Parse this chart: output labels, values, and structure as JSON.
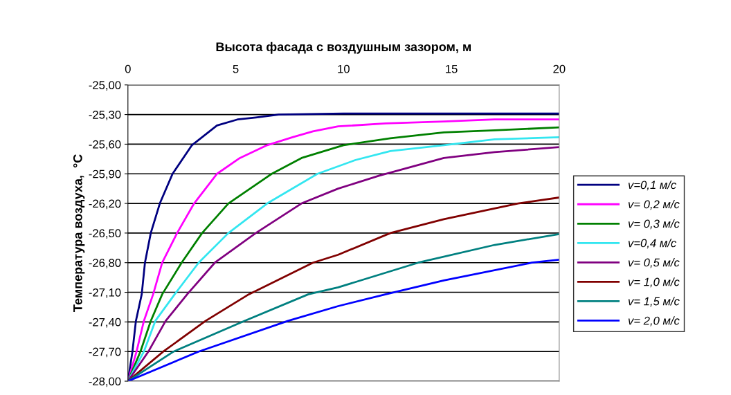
{
  "chart_data": {
    "type": "line",
    "xlabel": "Высота фасада с воздушным зазором, м",
    "ylabel": "Температура воздуха,  °С",
    "xlim": [
      0,
      20
    ],
    "xticks": [
      0,
      5,
      10,
      15,
      20
    ],
    "ylim": [
      -28,
      -25
    ],
    "yticks": [
      {
        "value": -25,
        "label": "-25,00"
      },
      {
        "value": -25.3,
        "label": "-25,30"
      },
      {
        "value": -25.6,
        "label": "-25,60"
      },
      {
        "value": -25.9,
        "label": "-25,90"
      },
      {
        "value": -26.2,
        "label": "-26,20"
      },
      {
        "value": -26.5,
        "label": "-26,50"
      },
      {
        "value": -26.8,
        "label": "-26,80"
      },
      {
        "value": -27.1,
        "label": "-27,10"
      },
      {
        "value": -27.4,
        "label": "-27,40"
      },
      {
        "value": -27.7,
        "label": "-27,70"
      },
      {
        "value": -28,
        "label": "-28,00"
      }
    ],
    "grid": "y",
    "legend": "right",
    "marker": "none",
    "line_style": "solid",
    "series": [
      {
        "name": "v=0,1 м/с",
        "color": "#000080",
        "x": [
          0,
          0.21,
          0.37,
          0.64,
          0.79,
          1.06,
          1.48,
          2.07,
          2.97,
          4.13,
          5.08,
          5.93,
          6.99,
          10,
          15,
          20
        ],
        "values": [
          -28.0,
          -27.7,
          -27.39,
          -27.12,
          -26.8,
          -26.5,
          -26.2,
          -25.9,
          -25.61,
          -25.41,
          -25.35,
          -25.33,
          -25.3,
          -25.29,
          -25.29,
          -25.29
        ]
      },
      {
        "name": "v= 0,2 м/с",
        "color": "#ff00ff",
        "x": [
          0,
          0.4,
          0.74,
          1.17,
          1.59,
          2.28,
          3.07,
          4.13,
          5.19,
          6.46,
          7.63,
          8.58,
          9.75,
          11.96,
          14.65,
          17.0,
          20
        ],
        "values": [
          -28.0,
          -27.7,
          -27.39,
          -27.12,
          -26.8,
          -26.5,
          -26.2,
          -25.9,
          -25.74,
          -25.61,
          -25.53,
          -25.47,
          -25.42,
          -25.39,
          -25.37,
          -25.35,
          -25.35
        ]
      },
      {
        "name": "v= 0,3 м/с",
        "color": "#008000",
        "x": [
          0,
          0.58,
          1.06,
          1.59,
          2.49,
          3.44,
          4.66,
          6.67,
          8.05,
          10,
          12.17,
          14.65,
          17.01,
          20
        ],
        "values": [
          -28.0,
          -27.7,
          -27.39,
          -27.12,
          -26.8,
          -26.5,
          -26.2,
          -25.9,
          -25.74,
          -25.61,
          -25.54,
          -25.48,
          -25.46,
          -25.43
        ]
      },
      {
        "name": "v=0,4 м/с",
        "color": "#33e6f0",
        "x": [
          0,
          0.74,
          1.27,
          2.17,
          3.28,
          4.66,
          6.46,
          8.79,
          10.56,
          12.17,
          14.65,
          17.01,
          20
        ],
        "values": [
          -28.0,
          -27.7,
          -27.39,
          -27.12,
          -26.8,
          -26.5,
          -26.2,
          -25.9,
          -25.76,
          -25.67,
          -25.61,
          -25.55,
          -25.53
        ]
      },
      {
        "name": "v= 0,5 м/с",
        "color": "#800080",
        "x": [
          0,
          0.95,
          1.75,
          2.75,
          4.03,
          5.93,
          8.05,
          9.75,
          11.63,
          14.65,
          17.01,
          20
        ],
        "values": [
          -28.0,
          -27.7,
          -27.39,
          -27.12,
          -26.8,
          -26.5,
          -26.2,
          -26.05,
          -25.92,
          -25.74,
          -25.68,
          -25.63
        ]
      },
      {
        "name": "v= 1,0 м/с",
        "color": "#800000",
        "x": [
          0,
          1.64,
          3.6,
          5.61,
          8.58,
          9.75,
          12.17,
          14.65,
          18.09,
          20
        ],
        "values": [
          -28.0,
          -27.7,
          -27.39,
          -27.12,
          -26.8,
          -26.72,
          -26.5,
          -26.36,
          -26.2,
          -26.14
        ]
      },
      {
        "name": "v= 1,5 м/с",
        "color": "#008080",
        "x": [
          0,
          2.12,
          5.4,
          8.37,
          9.75,
          13.46,
          17.01,
          20
        ],
        "values": [
          -28.0,
          -27.7,
          -27.39,
          -27.12,
          -27.05,
          -26.8,
          -26.62,
          -26.51
        ]
      },
      {
        "name": "v= 2,0 м/с",
        "color": "#0000ff",
        "x": [
          0,
          3.28,
          7.42,
          9.75,
          11.96,
          14.65,
          18.73,
          20
        ],
        "values": [
          -28.0,
          -27.7,
          -27.39,
          -27.24,
          -27.12,
          -26.98,
          -26.8,
          -26.77
        ]
      }
    ]
  }
}
